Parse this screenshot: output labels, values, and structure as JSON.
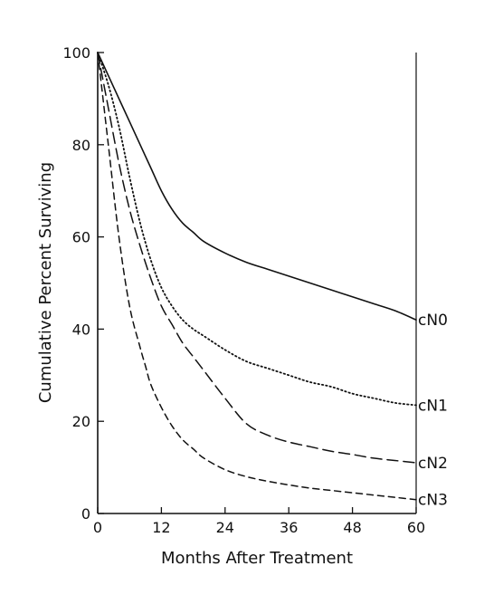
{
  "chart_data": {
    "type": "line",
    "title": "",
    "xlabel": "Months After Treatment",
    "ylabel": "Cumulative Percent Surviving",
    "xlim": [
      0,
      60
    ],
    "ylim": [
      0,
      100
    ],
    "xticks": [
      0,
      12,
      24,
      36,
      48,
      60
    ],
    "yticks": [
      0,
      20,
      40,
      60,
      80,
      100
    ],
    "grid": false,
    "legend": "none (series labeled at right end of lines)",
    "colors": {
      "line": "#111111",
      "axis": "#111111",
      "background": "#ffffff"
    },
    "series": [
      {
        "name": "cN0",
        "dash": "solid",
        "x": [
          0,
          2,
          4,
          6,
          8,
          10,
          12,
          14,
          16,
          18,
          20,
          24,
          28,
          32,
          36,
          40,
          44,
          48,
          52,
          56,
          60
        ],
        "y": [
          100,
          95,
          90,
          85,
          80,
          75,
          70,
          66,
          63,
          61,
          59,
          56.5,
          54.5,
          53,
          51.5,
          50,
          48.5,
          47,
          45.5,
          44,
          42
        ]
      },
      {
        "name": "cN1",
        "dash": "dotted",
        "x": [
          0,
          2,
          4,
          6,
          8,
          10,
          12,
          14,
          16,
          18,
          20,
          24,
          28,
          32,
          36,
          40,
          44,
          48,
          52,
          56,
          60
        ],
        "y": [
          100,
          93,
          84,
          73,
          63,
          55,
          49,
          45,
          42,
          40,
          38.5,
          35.5,
          33,
          31.5,
          30,
          28.5,
          27.5,
          26,
          25,
          24,
          23.5
        ]
      },
      {
        "name": "cN2",
        "dash": "long-dash",
        "x": [
          0,
          2,
          4,
          6,
          8,
          10,
          12,
          14,
          16,
          18,
          20,
          24,
          28,
          32,
          36,
          40,
          44,
          48,
          52,
          56,
          60
        ],
        "y": [
          100,
          88,
          76,
          66,
          58,
          51,
          45,
          41,
          37,
          34,
          31,
          25,
          19.5,
          17,
          15.5,
          14.5,
          13.5,
          12.8,
          12,
          11.5,
          11
        ]
      },
      {
        "name": "cN3",
        "dash": "short-dash",
        "x": [
          0,
          2,
          4,
          6,
          8,
          9,
          10,
          12,
          14,
          16,
          18,
          20,
          24,
          28,
          32,
          36,
          40,
          44,
          48,
          52,
          56,
          60
        ],
        "y": [
          100,
          80,
          60,
          45,
          36,
          32,
          28,
          23,
          19,
          16,
          14,
          12,
          9.5,
          8,
          7,
          6.2,
          5.5,
          5,
          4.5,
          4,
          3.5,
          3
        ]
      }
    ]
  }
}
